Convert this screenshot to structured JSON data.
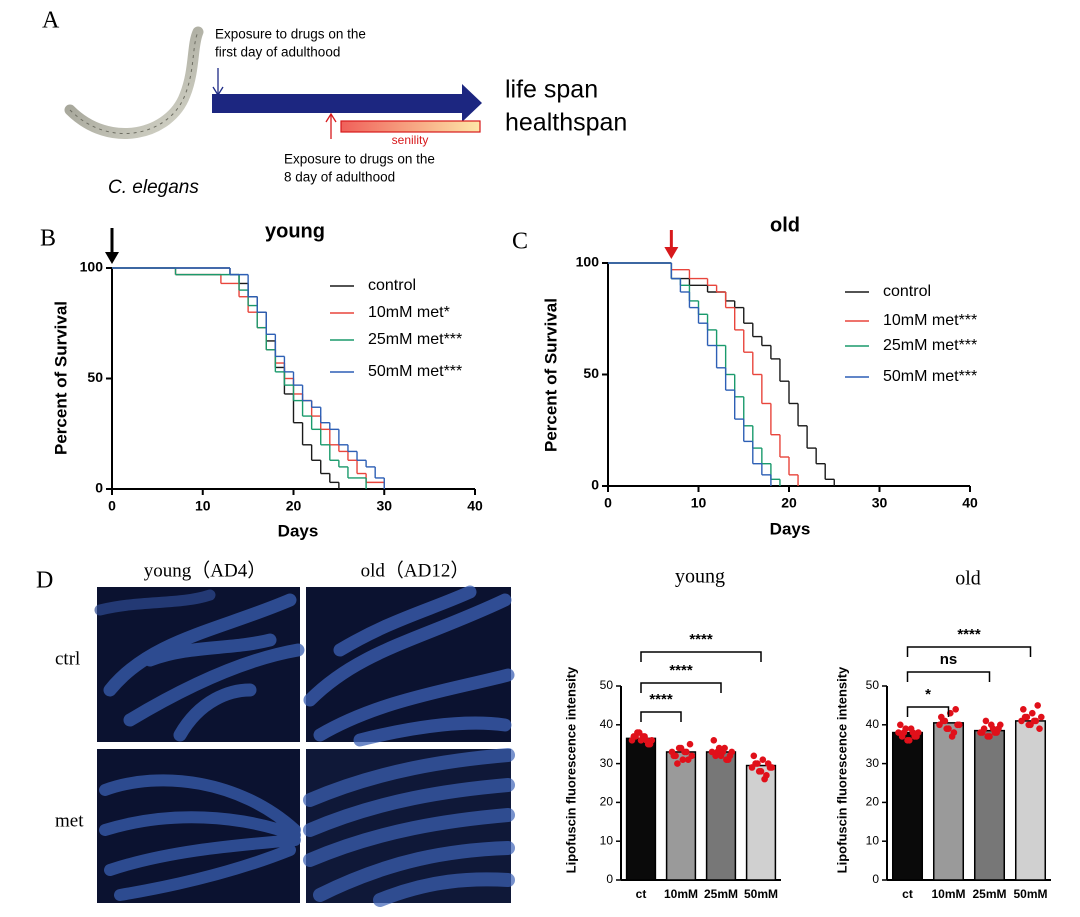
{
  "panel_labels": [
    "A",
    "B",
    "C",
    "D"
  ],
  "diagram": {
    "drug_first_day": [
      "Exposure to drugs on the",
      "first day of adulthood"
    ],
    "drug_eighth_day": [
      "Exposure to drugs on the",
      "8 day of adulthood"
    ],
    "bar_label": "senility",
    "outcomes": [
      "life span",
      "healthspan"
    ],
    "organism": "C. elegans"
  },
  "images": {
    "columns": [
      "young（AD4）",
      "old（AD12）"
    ],
    "rows": [
      "ctrl",
      "met"
    ]
  },
  "chart_data": [
    {
      "type": "line",
      "step": true,
      "title": "young",
      "x_label": "Days",
      "y_label": "Percent of Survival",
      "xlim": [
        0,
        40
      ],
      "xticks": [
        0,
        10,
        20,
        30,
        40
      ],
      "ylim": [
        0,
        100
      ],
      "yticks": [
        0,
        50,
        100
      ],
      "arrow_day": 0,
      "arrow_color": "#000000",
      "series": [
        {
          "name": "control",
          "color": "#1a1a1a",
          "x": [
            0,
            13,
            14,
            15,
            16,
            17,
            18,
            19,
            20,
            21,
            22,
            23,
            24,
            25
          ],
          "values": [
            100,
            97,
            93,
            87,
            80,
            67,
            55,
            43,
            30,
            20,
            13,
            7,
            3,
            0
          ]
        },
        {
          "name": "10mM met*",
          "color": "#e8453c",
          "x": [
            0,
            7,
            12,
            14,
            15,
            16,
            17,
            18,
            19,
            20,
            21,
            22,
            23,
            24,
            25,
            26,
            27,
            28,
            30
          ],
          "values": [
            100,
            97,
            93,
            87,
            80,
            73,
            63,
            57,
            50,
            43,
            40,
            33,
            27,
            20,
            17,
            13,
            7,
            3,
            0
          ]
        },
        {
          "name": "25mM met***",
          "color": "#1a9a6c",
          "x": [
            0,
            7,
            14,
            15,
            16,
            17,
            18,
            19,
            20,
            21,
            22,
            23,
            24,
            25,
            26,
            28
          ],
          "values": [
            100,
            97,
            90,
            83,
            73,
            63,
            53,
            47,
            40,
            33,
            27,
            20,
            13,
            10,
            5,
            0
          ]
        },
        {
          "name": "50mM met***",
          "color": "#2d5fb5",
          "x": [
            0,
            13,
            15,
            16,
            17,
            18,
            19,
            20,
            21,
            22,
            23,
            24,
            25,
            26,
            27,
            28,
            29,
            30
          ],
          "values": [
            100,
            97,
            87,
            80,
            70,
            60,
            53,
            47,
            40,
            37,
            30,
            27,
            20,
            17,
            13,
            10,
            5,
            0
          ]
        }
      ]
    },
    {
      "type": "line",
      "step": true,
      "title": "old",
      "x_label": "Days",
      "y_label": "Percent of Survival",
      "xlim": [
        0,
        40
      ],
      "xticks": [
        0,
        10,
        20,
        30,
        40
      ],
      "ylim": [
        0,
        100
      ],
      "yticks": [
        0,
        50,
        100
      ],
      "arrow_day": 7,
      "arrow_color": "#d7191c",
      "series": [
        {
          "name": "control",
          "color": "#1a1a1a",
          "x": [
            0,
            7,
            9,
            11,
            13,
            14,
            15,
            16,
            17,
            18,
            19,
            20,
            21,
            22,
            23,
            24,
            25
          ],
          "values": [
            100,
            93,
            90,
            87,
            83,
            80,
            73,
            67,
            63,
            57,
            47,
            37,
            27,
            17,
            10,
            3,
            0
          ]
        },
        {
          "name": "10mM met***",
          "color": "#e8453c",
          "x": [
            0,
            7,
            9,
            11,
            12,
            13,
            14,
            15,
            16,
            17,
            18,
            19,
            20,
            21
          ],
          "values": [
            100,
            97,
            93,
            90,
            87,
            80,
            70,
            60,
            50,
            37,
            23,
            13,
            5,
            0
          ]
        },
        {
          "name": "25mM met***",
          "color": "#1a9a6c",
          "x": [
            0,
            7,
            8,
            9,
            10,
            11,
            12,
            13,
            14,
            15,
            16,
            17,
            18,
            19
          ],
          "values": [
            100,
            93,
            90,
            83,
            77,
            70,
            63,
            50,
            40,
            27,
            17,
            10,
            3,
            0
          ]
        },
        {
          "name": "50mM met***",
          "color": "#2d5fb5",
          "x": [
            0,
            7,
            8,
            9,
            10,
            11,
            12,
            13,
            14,
            15,
            16,
            17,
            18
          ],
          "values": [
            100,
            93,
            87,
            80,
            73,
            63,
            53,
            43,
            30,
            20,
            10,
            5,
            0
          ]
        }
      ]
    },
    {
      "type": "bar",
      "title": "young",
      "y_label": "Lipofuscin fluorescence intensity",
      "categories": [
        "ct",
        "10mM",
        "25mM",
        "50mM"
      ],
      "values": [
        36.5,
        33,
        33,
        29.5
      ],
      "colors": [
        "#0a0a0a",
        "#9a9a9a",
        "#777777",
        "#d0d0d0"
      ],
      "point_color": "#e0101a",
      "points": [
        [
          36,
          37,
          38,
          37,
          36,
          35,
          37,
          38,
          36,
          37,
          35,
          36
        ],
        [
          33,
          32,
          34,
          31,
          33,
          35,
          32,
          30,
          34,
          33,
          31,
          32
        ],
        [
          33,
          32,
          34,
          33,
          31,
          32,
          36,
          33,
          32,
          34,
          31,
          33
        ],
        [
          29,
          30,
          28,
          31,
          27,
          29,
          32,
          30,
          28,
          26,
          30,
          29
        ]
      ],
      "ylim": [
        0,
        50
      ],
      "yticks": [
        0,
        10,
        20,
        30,
        40,
        50
      ],
      "significance": [
        {
          "label": "****",
          "between": [
            "ct",
            "10mM"
          ]
        },
        {
          "label": "****",
          "between": [
            "ct",
            "25mM"
          ]
        },
        {
          "label": "****",
          "between": [
            "ct",
            "50mM"
          ]
        }
      ]
    },
    {
      "type": "bar",
      "title": "old",
      "y_label": "Lipofuscin fluorescence intensity",
      "categories": [
        "ct",
        "10mM",
        "25mM",
        "50mM"
      ],
      "values": [
        38,
        40.5,
        38.5,
        41
      ],
      "colors": [
        "#0a0a0a",
        "#9a9a9a",
        "#777777",
        "#d0d0d0"
      ],
      "point_color": "#e0101a",
      "points": [
        [
          38,
          37,
          39,
          36,
          38,
          37,
          40,
          38,
          36,
          39,
          37,
          38
        ],
        [
          40,
          41,
          39,
          43,
          38,
          40,
          42,
          41,
          39,
          37,
          44,
          40
        ],
        [
          38,
          39,
          37,
          40,
          38,
          39,
          38,
          41,
          37,
          39,
          38,
          40
        ],
        [
          41,
          42,
          40,
          43,
          41,
          39,
          44,
          42,
          40,
          41,
          45,
          42
        ]
      ],
      "ylim": [
        0,
        50
      ],
      "yticks": [
        0,
        10,
        20,
        30,
        40,
        50
      ],
      "significance": [
        {
          "label": "*",
          "between": [
            "ct",
            "10mM"
          ]
        },
        {
          "label": "ns",
          "between": [
            "ct",
            "25mM"
          ]
        },
        {
          "label": "****",
          "between": [
            "ct",
            "50mM"
          ]
        }
      ]
    }
  ]
}
